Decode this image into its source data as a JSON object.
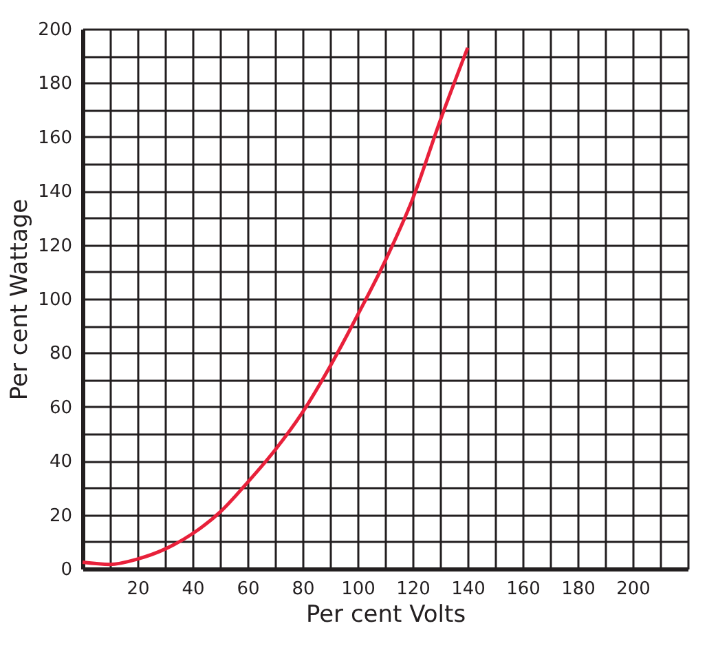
{
  "chart_data": {
    "type": "line",
    "xlabel": "Per cent Volts",
    "ylabel": "Per cent Wattage",
    "x": [
      0,
      10,
      20,
      30,
      40,
      50,
      60,
      70,
      80,
      90,
      100,
      110,
      120,
      130,
      140
    ],
    "series": [
      {
        "color": "#e8203a",
        "values": [
          2.4,
          1.6,
          3.6,
          7.3,
          13,
          21,
          32,
          44,
          58,
          75,
          94,
          114,
          137,
          166,
          193
        ]
      }
    ],
    "xlim": [
      0,
      220
    ],
    "ylim": [
      0,
      200
    ],
    "xticks": [
      {
        "value": 0,
        "label": null
      },
      {
        "value": 10,
        "label": null
      },
      20,
      {
        "value": 30,
        "label": null
      },
      40,
      {
        "value": 50,
        "label": null
      },
      60,
      {
        "value": 70,
        "label": null
      },
      80,
      {
        "value": 90,
        "label": null
      },
      100,
      {
        "value": 110,
        "label": null
      },
      120,
      {
        "value": 130,
        "label": null
      },
      140,
      {
        "value": 150,
        "label": null
      },
      160,
      {
        "value": 170,
        "label": null
      },
      180,
      {
        "value": 190,
        "label": null
      },
      200,
      {
        "value": 210,
        "label": null
      },
      {
        "value": 220,
        "label": null
      }
    ],
    "yticks": [
      0,
      {
        "value": 10,
        "label": null
      },
      20,
      {
        "value": 30,
        "label": null
      },
      40,
      {
        "value": 50,
        "label": null
      },
      60,
      {
        "value": 70,
        "label": null
      },
      80,
      {
        "value": 90,
        "label": null
      },
      100,
      {
        "value": 110,
        "label": null
      },
      120,
      {
        "value": 130,
        "label": null
      },
      140,
      {
        "value": 150,
        "label": null
      },
      160,
      {
        "value": 170,
        "label": null
      },
      180,
      {
        "value": 190,
        "label": null
      },
      200
    ],
    "grid": true,
    "marker": "none",
    "line_style": "solid"
  }
}
